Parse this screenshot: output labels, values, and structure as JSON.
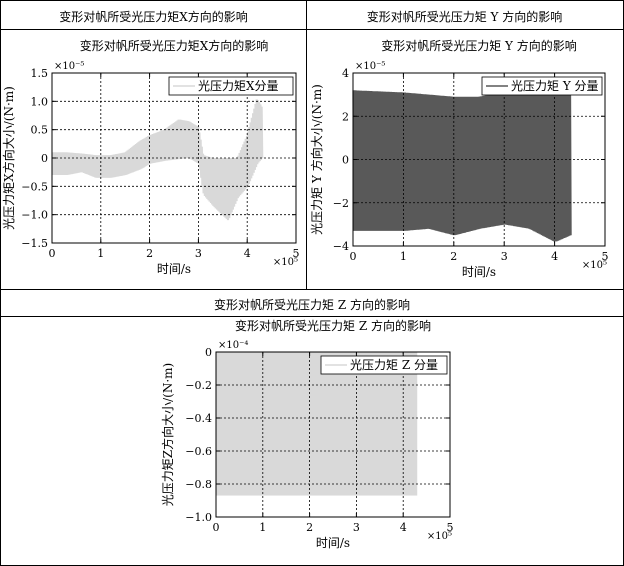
{
  "panels": {
    "x": {
      "header": "变形对帆所受光压力矩X方向的影响"
    },
    "y": {
      "header": "变形对帆所受光压力矩 Y 方向的影响"
    },
    "z": {
      "header": "变形对帆所受光压力矩 Z 方向的影响"
    }
  },
  "chart_data": [
    {
      "id": "x",
      "type": "line",
      "title": "变形对帆所受光压力矩X方向的影响",
      "xlabel": "时间/s",
      "ylabel": "光压力矩X方向大小/(N·m)",
      "x_exponent": "×10⁵",
      "y_exponent": "×10⁻⁵",
      "xlim": [
        0,
        5
      ],
      "ylim": [
        -1.5,
        1.5
      ],
      "xticks": [
        "0",
        "1",
        "2",
        "3",
        "4",
        "5"
      ],
      "yticks": [
        "−1.5",
        "−1.0",
        "−0.5",
        "0",
        "0.5",
        "1.0",
        "1.5"
      ],
      "grid": true,
      "legend_position": "top-right",
      "series": [
        {
          "name": "光压力矩X分量",
          "color": "#d9d9d9",
          "envelope_x": [
            0,
            0.3,
            0.6,
            0.9,
            1.2,
            1.5,
            1.8,
            2.0,
            2.3,
            2.6,
            2.8,
            3.0,
            3.1,
            3.3,
            3.6,
            3.8,
            4.0,
            4.2,
            4.3
          ],
          "envelope_upper": [
            0.1,
            0.1,
            0.08,
            0.05,
            0.05,
            0.1,
            0.3,
            0.4,
            0.5,
            0.68,
            0.65,
            0.55,
            0.05,
            0.0,
            0.0,
            0.0,
            0.4,
            1.05,
            0.9
          ],
          "envelope_lower": [
            -0.3,
            -0.3,
            -0.25,
            -0.35,
            -0.35,
            -0.3,
            -0.2,
            -0.1,
            -0.05,
            -0.02,
            0.0,
            -0.1,
            -0.65,
            -0.85,
            -1.1,
            -0.7,
            -0.5,
            -0.1,
            0.0
          ]
        }
      ]
    },
    {
      "id": "y",
      "type": "line",
      "title": "变形对帆所受光压力矩 Y 方向的影响",
      "xlabel": "时间/s",
      "ylabel": "光压力矩 Y 方向大小/(N·m)",
      "x_exponent": "×10⁵",
      "y_exponent": "×10⁻⁵",
      "xlim": [
        0,
        5
      ],
      "ylim": [
        -4,
        4
      ],
      "xticks": [
        "0",
        "1",
        "2",
        "3",
        "4",
        "5"
      ],
      "yticks": [
        "−4",
        "−2",
        "0",
        "2",
        "4"
      ],
      "grid": true,
      "legend_position": "top-right",
      "series": [
        {
          "name": "光压力矩 Y 分量",
          "color": "#595959",
          "envelope_x": [
            0,
            0.5,
            1.0,
            1.5,
            2.0,
            2.5,
            3.0,
            3.5,
            4.0,
            4.3
          ],
          "envelope_upper": [
            3.2,
            3.15,
            3.1,
            3.0,
            2.9,
            2.9,
            3.1,
            3.2,
            3.3,
            3.5
          ],
          "envelope_lower": [
            -3.3,
            -3.3,
            -3.3,
            -3.2,
            -3.5,
            -3.2,
            -3.0,
            -3.2,
            -3.8,
            -3.5
          ]
        }
      ]
    },
    {
      "id": "z",
      "type": "area",
      "title": "变形对帆所受光压力矩 Z 方向的影响",
      "xlabel": "时间/s",
      "ylabel": "光压力矩Z方向大小/(N·m)",
      "x_exponent": "×10⁵",
      "y_exponent": "×10⁻⁴",
      "xlim": [
        0,
        5
      ],
      "ylim": [
        -1.0,
        0
      ],
      "xticks": [
        "0",
        "1",
        "2",
        "3",
        "4",
        "5"
      ],
      "yticks": [
        "−1.0",
        "−0.8",
        "−0.6",
        "−0.4",
        "−0.2",
        "0"
      ],
      "grid": true,
      "legend_position": "top-right",
      "series": [
        {
          "name": "光压力矩 Z 分量",
          "color": "#d9d9d9",
          "x_range": [
            0,
            4.3
          ],
          "y_range": [
            -0.87,
            0
          ]
        }
      ]
    }
  ]
}
